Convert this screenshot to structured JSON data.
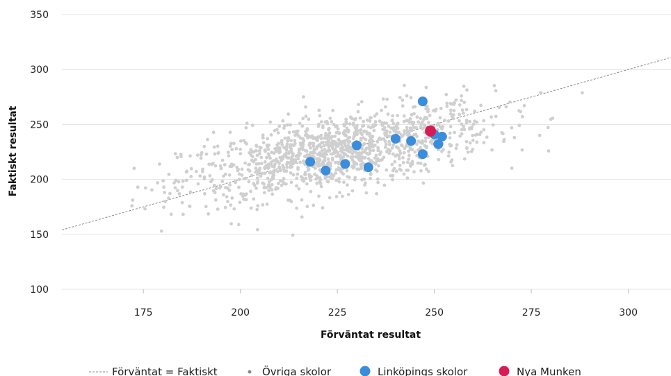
{
  "chart_data": {
    "type": "scatter",
    "xlabel": "Förväntat resultat",
    "ylabel": "Faktiskt resultat",
    "xlim": [
      154,
      311
    ],
    "ylim": [
      100,
      350
    ],
    "x_ticks": [
      175,
      200,
      225,
      250,
      275,
      300
    ],
    "y_ticks": [
      100,
      150,
      200,
      250,
      300,
      350
    ],
    "grid": "horizontal",
    "legend_position": "bottom",
    "reference_line": {
      "name": "Förväntat = Faktiskt",
      "style": "dashed",
      "color": "#888888"
    },
    "series": [
      {
        "name": "Övriga skolor",
        "color": "#cfcfcf",
        "legend_color": "#888888",
        "count_approx": 1300,
        "center": [
          225,
          225
        ],
        "spread_x": 20,
        "correlation": 0.75,
        "residual_sd": 17
      },
      {
        "name": "Linköpings skolor",
        "color": "#3a8ddb",
        "points": [
          {
            "x": 218,
            "y": 216
          },
          {
            "x": 222,
            "y": 208
          },
          {
            "x": 227,
            "y": 214
          },
          {
            "x": 230,
            "y": 231
          },
          {
            "x": 233,
            "y": 211
          },
          {
            "x": 240,
            "y": 237
          },
          {
            "x": 244,
            "y": 235
          },
          {
            "x": 247,
            "y": 223
          },
          {
            "x": 247,
            "y": 271
          },
          {
            "x": 250,
            "y": 241
          },
          {
            "x": 251,
            "y": 232
          },
          {
            "x": 252,
            "y": 239
          }
        ]
      },
      {
        "name": "Nya Munken",
        "color": "#d81b53",
        "points": [
          {
            "x": 249,
            "y": 244
          }
        ]
      }
    ]
  }
}
